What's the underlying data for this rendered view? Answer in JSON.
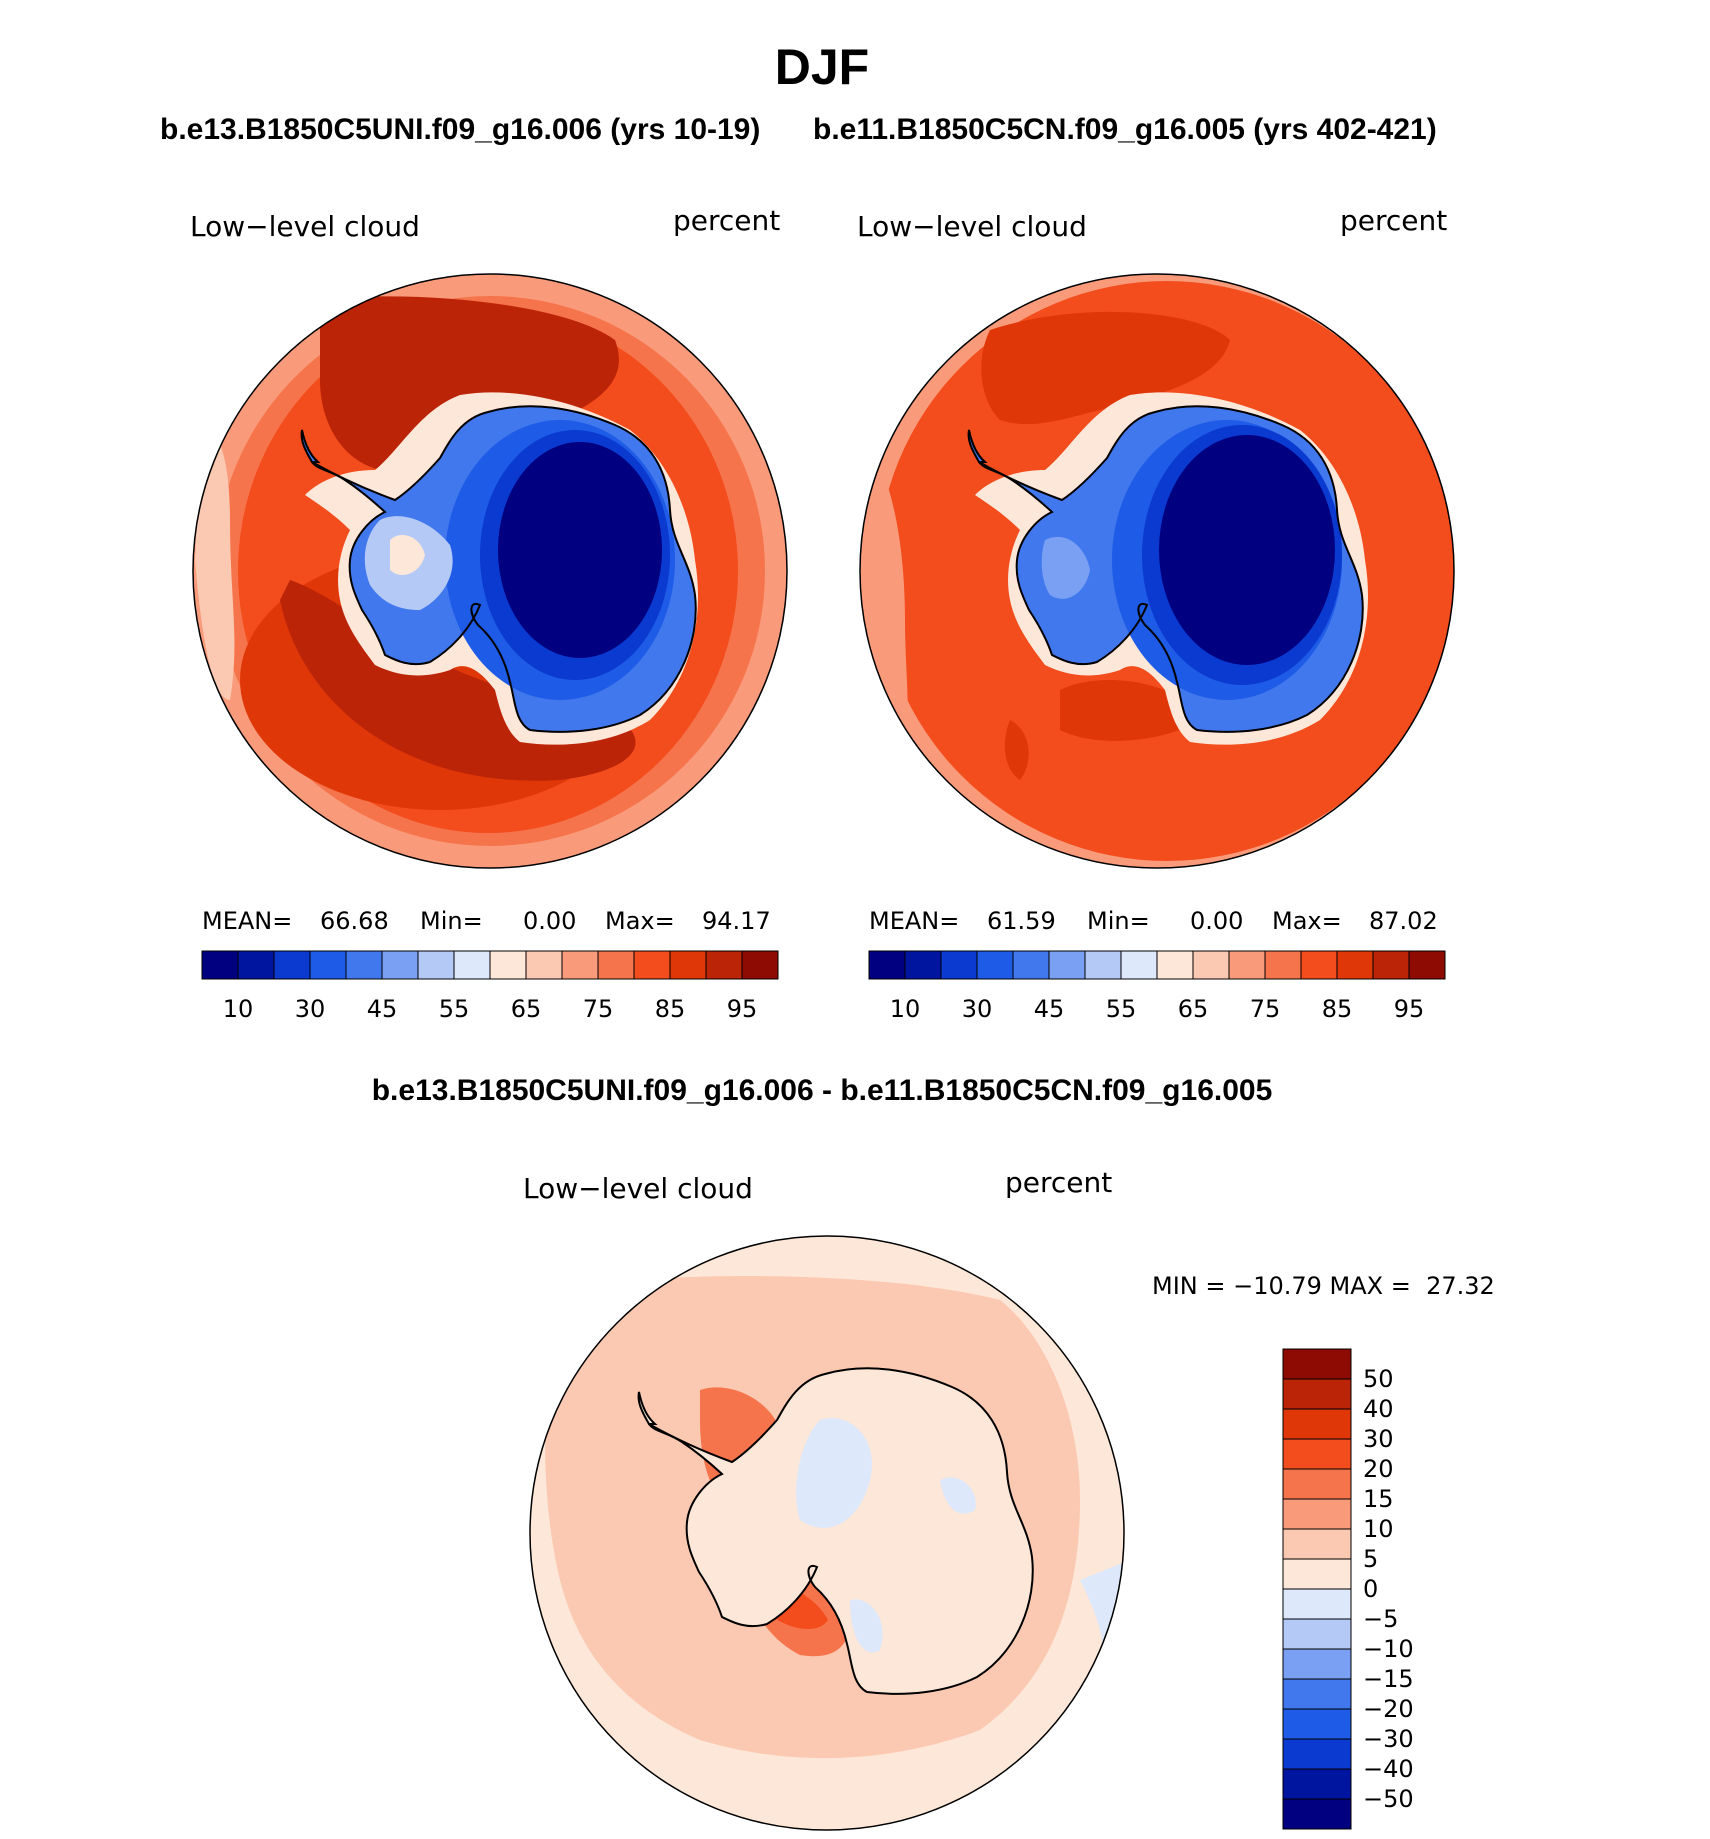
{
  "season_title": "DJF",
  "panels": [
    {
      "case_title": "b.e13.B1850C5UNI.f09_g16.006 (yrs 10-19)",
      "left_label": "Low−level cloud",
      "right_label": "percent",
      "stats": {
        "mean_label": "MEAN=",
        "mean": "66.68",
        "min_label": "Min=",
        "min": "0.00",
        "max_label": "Max=",
        "max": "94.17"
      }
    },
    {
      "case_title": "b.e11.B1850C5CN.f09_g16.005 (yrs 402-421)",
      "left_label": "Low−level cloud",
      "right_label": "percent",
      "stats": {
        "mean_label": "MEAN=",
        "mean": "61.59",
        "min_label": "Min=",
        "min": "0.00",
        "max_label": "Max=",
        "max": "87.02"
      }
    }
  ],
  "abs_colorbar": {
    "colors": [
      "#000080",
      "#00159f",
      "#0a3ad0",
      "#1e5be6",
      "#4178ee",
      "#7aa0f3",
      "#b4c9f6",
      "#dde8fa",
      "#fde7d8",
      "#fbc8b1",
      "#f99b7a",
      "#f6744b",
      "#f34c1d",
      "#e03709",
      "#bc2408",
      "#8e0b04"
    ],
    "labels": [
      "10",
      "30",
      "45",
      "55",
      "65",
      "75",
      "85",
      "95"
    ]
  },
  "diff": {
    "title": "b.e13.B1850C5UNI.f09_g16.006 - b.e11.B1850C5CN.f09_g16.005",
    "left_label": "Low−level cloud",
    "right_label": "percent",
    "minmax_text": "MIN = −10.79 MAX =  27.32",
    "colorbar": {
      "colors": [
        "#8e0b04",
        "#bc2408",
        "#e03709",
        "#f34c1d",
        "#f6744b",
        "#f99b7a",
        "#fbc8b1",
        "#fde7d8",
        "#dde8fa",
        "#b4c9f6",
        "#7aa0f3",
        "#4178ee",
        "#1e5be6",
        "#0a3ad0",
        "#00159f",
        "#000080"
      ],
      "labels": [
        "50",
        "40",
        "30",
        "20",
        "15",
        "10",
        "5",
        "0",
        "−5",
        "−10",
        "−15",
        "−20",
        "−30",
        "−40",
        "−50"
      ]
    }
  }
}
